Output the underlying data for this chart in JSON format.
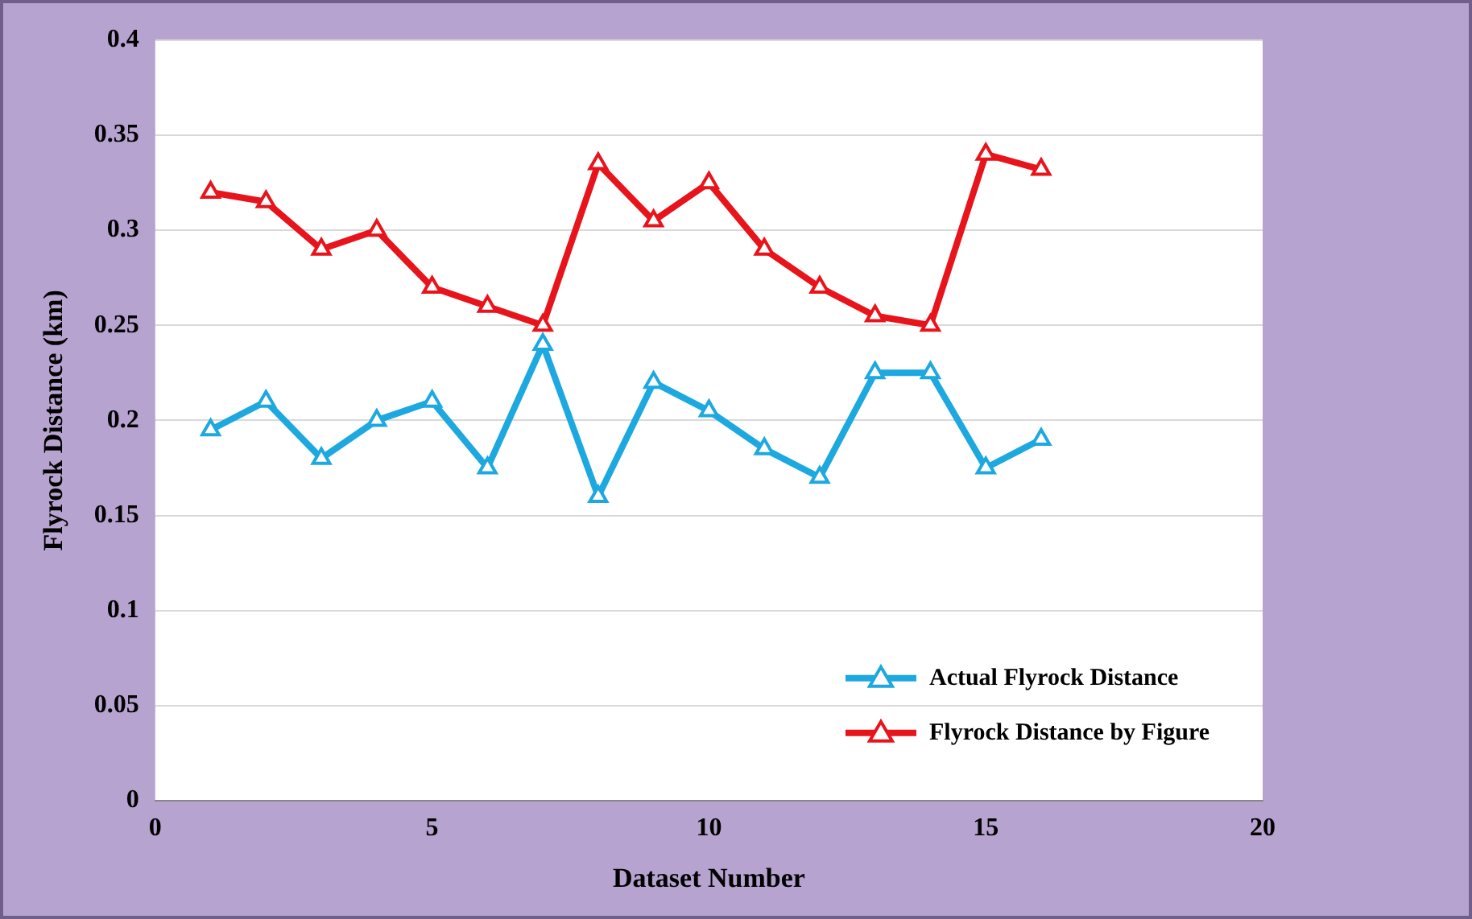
{
  "chart_data": {
    "type": "line",
    "xlabel": "Dataset Number",
    "ylabel": "Flyrock Distance (km)",
    "x": [
      1,
      2,
      3,
      4,
      5,
      6,
      7,
      8,
      9,
      10,
      11,
      12,
      13,
      14,
      15,
      16
    ],
    "series": [
      {
        "name": "Actual Flyrock Distance",
        "color": "#1ea8e0",
        "values": [
          0.195,
          0.21,
          0.18,
          0.2,
          0.21,
          0.175,
          0.24,
          0.16,
          0.22,
          0.205,
          0.185,
          0.17,
          0.225,
          0.225,
          0.175,
          0.19
        ]
      },
      {
        "name": "Flyrock Distance by Figure",
        "color": "#e8141c",
        "values": [
          0.32,
          0.315,
          0.29,
          0.3,
          0.27,
          0.26,
          0.25,
          0.335,
          0.305,
          0.325,
          0.29,
          0.27,
          0.255,
          0.25,
          0.34,
          0.332
        ]
      }
    ],
    "xlim": [
      0,
      20
    ],
    "xticks": [
      0,
      5,
      10,
      15,
      20
    ],
    "ylim": [
      0,
      0.4
    ],
    "yticks": [
      0,
      0.05,
      0.1,
      0.15,
      0.2,
      0.25,
      0.3,
      0.35,
      0.4
    ],
    "grid": "y",
    "legend": "bottom right",
    "marker": "triangle",
    "line_style": "solid"
  }
}
